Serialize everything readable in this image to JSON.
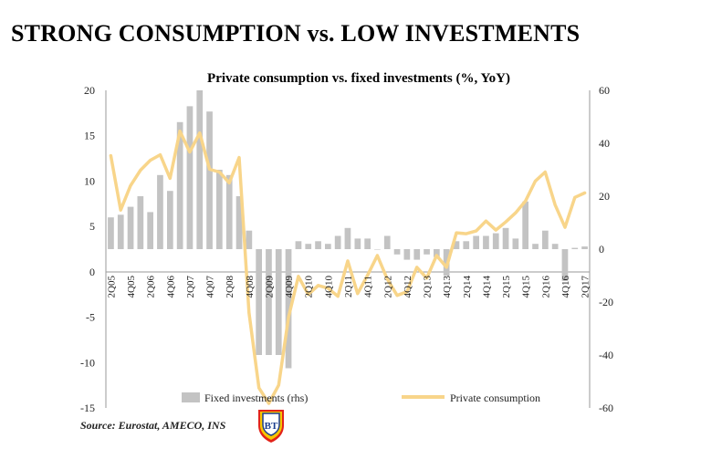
{
  "headline": "STRONG CONSUMPTION vs. LOW INVESTMENTS",
  "source": "Source: Eurostat, AMECO, INS",
  "logo": {
    "text": "BT",
    "colors": [
      "#1d3f8f",
      "#f7c600",
      "#e2231a"
    ]
  },
  "colors": {
    "bars": "#c3c3c3",
    "line": "#f8d58a",
    "axis": "#9a9a9a"
  },
  "chart_data": {
    "type": "bar",
    "title": "Private consumption vs. fixed investments (%, YoY)",
    "y_left": {
      "ticks": [
        "20",
        "15",
        "10",
        "5",
        "0",
        "-5",
        "-10",
        "-15"
      ],
      "range": [
        -15,
        20
      ]
    },
    "y_right": {
      "ticks": [
        "60",
        "40",
        "20",
        "0",
        "-20",
        "-40",
        "-60"
      ],
      "range": [
        -60,
        60
      ]
    },
    "x_tick_labels": [
      "2Q05",
      "4Q05",
      "2Q06",
      "4Q06",
      "2Q07",
      "4Q07",
      "2Q08",
      "4Q08",
      "2Q09",
      "4Q09",
      "2Q10",
      "4Q10",
      "2Q11",
      "4Q11",
      "2Q12",
      "4Q12",
      "2Q13",
      "4Q13",
      "2Q14",
      "4Q14",
      "2Q15",
      "4Q15",
      "2Q16",
      "4Q16",
      "2Q17"
    ],
    "categories": [
      "2Q05",
      "3Q05",
      "4Q05",
      "1Q06",
      "2Q06",
      "3Q06",
      "4Q06",
      "1Q07",
      "2Q07",
      "3Q07",
      "4Q07",
      "1Q08",
      "2Q08",
      "3Q08",
      "4Q08",
      "1Q09",
      "2Q09",
      "3Q09",
      "4Q09",
      "1Q10",
      "2Q10",
      "3Q10",
      "4Q10",
      "1Q11",
      "2Q11",
      "3Q11",
      "4Q11",
      "1Q12",
      "2Q12",
      "3Q12",
      "4Q12",
      "1Q13",
      "2Q13",
      "3Q13",
      "4Q13",
      "1Q14",
      "2Q14",
      "3Q14",
      "4Q14",
      "1Q15",
      "2Q15",
      "3Q15",
      "4Q15",
      "1Q16",
      "2Q16",
      "3Q16",
      "4Q16",
      "1Q17",
      "2Q17"
    ],
    "series": [
      {
        "name": "Fixed investments (rhs)",
        "type": "bar",
        "axis": "right",
        "values": [
          12,
          13,
          16,
          20,
          14,
          28,
          22,
          48,
          54,
          60,
          52,
          30,
          28,
          20,
          7,
          -40,
          -40,
          -40,
          -45,
          3,
          2,
          3,
          2,
          5,
          8,
          4,
          4,
          0,
          5,
          -2,
          -4,
          -4,
          -2,
          -3,
          -10,
          3,
          3,
          5,
          5,
          6,
          8,
          4,
          18,
          2,
          7,
          2,
          -12,
          0.5,
          1
        ]
      },
      {
        "name": "Private consumption",
        "type": "line",
        "axis": "left",
        "values": [
          12.8,
          6.8,
          9.5,
          11.2,
          12.3,
          12.9,
          10.3,
          15.5,
          13.2,
          15.3,
          11.3,
          11.0,
          9.8,
          12.6,
          -4.5,
          -12.8,
          -14.5,
          -12.5,
          -5.0,
          -0.5,
          -2.5,
          -1.5,
          -1.8,
          -2.7,
          1.2,
          -2.4,
          -0.4,
          1.8,
          -0.8,
          -2.6,
          -2.2,
          0.5,
          -0.7,
          1.8,
          0.5,
          4.3,
          4.2,
          4.5,
          5.6,
          4.6,
          5.5,
          6.5,
          7.8,
          10.0,
          11.0,
          7.4,
          4.9,
          8.2,
          8.7
        ]
      }
    ]
  }
}
